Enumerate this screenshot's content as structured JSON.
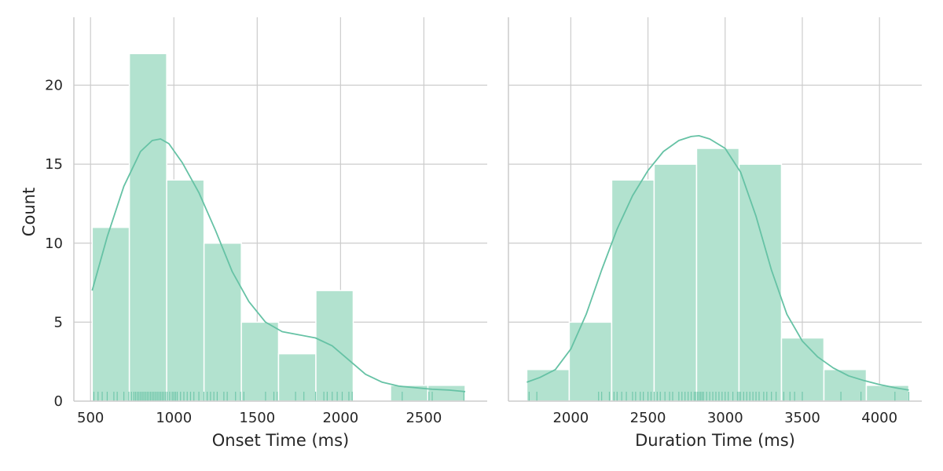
{
  "chart_data": [
    {
      "type": "bar",
      "subtype": "histogram-with-kde-and-rug",
      "xlabel": "Onset Time (ms)",
      "ylabel": "Count",
      "xlim": [
        400,
        2880
      ],
      "ylim": [
        0,
        24.3
      ],
      "x_ticks": [
        {
          "value": 500,
          "label": "500"
        },
        {
          "value": 1000,
          "label": "1000"
        },
        {
          "value": 1500,
          "label": "1500"
        },
        {
          "value": 2000,
          "label": "2000"
        },
        {
          "value": 2500,
          "label": "2500"
        }
      ],
      "y_ticks": [
        {
          "value": 0,
          "label": "0"
        },
        {
          "value": 5,
          "label": "5"
        },
        {
          "value": 10,
          "label": "10"
        },
        {
          "value": 15,
          "label": "15"
        },
        {
          "value": 20,
          "label": "20"
        }
      ],
      "bins": [
        {
          "start": 510,
          "end": 733,
          "count": 11
        },
        {
          "start": 733,
          "end": 957,
          "count": 22
        },
        {
          "start": 957,
          "end": 1181,
          "count": 14
        },
        {
          "start": 1181,
          "end": 1405,
          "count": 10
        },
        {
          "start": 1405,
          "end": 1628,
          "count": 5
        },
        {
          "start": 1628,
          "end": 1852,
          "count": 3
        },
        {
          "start": 1852,
          "end": 2076,
          "count": 7
        },
        {
          "start": 2076,
          "end": 2300,
          "count": 0
        },
        {
          "start": 2300,
          "end": 2524,
          "count": 1
        },
        {
          "start": 2524,
          "end": 2748,
          "count": 1
        }
      ],
      "kde": {
        "x": [
          510,
          600,
          700,
          800,
          870,
          920,
          970,
          1050,
          1150,
          1250,
          1350,
          1450,
          1550,
          1650,
          1750,
          1850,
          1950,
          2050,
          2150,
          2250,
          2350,
          2450,
          2550,
          2650,
          2748
        ],
        "y": [
          7.0,
          10.4,
          13.6,
          15.8,
          16.5,
          16.6,
          16.3,
          15.1,
          13.2,
          10.8,
          8.2,
          6.3,
          5.0,
          4.4,
          4.2,
          4.0,
          3.5,
          2.6,
          1.7,
          1.2,
          0.95,
          0.85,
          0.75,
          0.7,
          0.6
        ]
      },
      "rug": [
        520,
        545,
        570,
        600,
        640,
        660,
        700,
        730,
        745,
        760,
        770,
        780,
        790,
        800,
        810,
        820,
        830,
        840,
        850,
        860,
        870,
        880,
        890,
        900,
        910,
        920,
        930,
        940,
        950,
        960,
        975,
        990,
        1000,
        1010,
        1020,
        1040,
        1060,
        1080,
        1100,
        1120,
        1150,
        1180,
        1200,
        1220,
        1240,
        1260,
        1300,
        1320,
        1370,
        1400,
        1420,
        1550,
        1600,
        1620,
        1730,
        1780,
        1850,
        1900,
        1920,
        1950,
        1980,
        2010,
        2050,
        2070,
        2370,
        2530,
        2550,
        2740
      ]
    },
    {
      "type": "bar",
      "subtype": "histogram-with-kde-and-rug",
      "xlabel": "Duration Time (ms)",
      "ylabel": "",
      "xlim": [
        1596,
        4274
      ],
      "ylim": [
        0,
        24.3
      ],
      "x_ticks": [
        {
          "value": 2000,
          "label": "2000"
        },
        {
          "value": 2500,
          "label": "2500"
        },
        {
          "value": 3000,
          "label": "3000"
        },
        {
          "value": 3500,
          "label": "3500"
        },
        {
          "value": 4000,
          "label": "4000"
        }
      ],
      "y_ticks": [
        {
          "value": 0,
          "label": ""
        },
        {
          "value": 5,
          "label": ""
        },
        {
          "value": 10,
          "label": ""
        },
        {
          "value": 15,
          "label": ""
        },
        {
          "value": 20,
          "label": ""
        }
      ],
      "bins": [
        {
          "start": 1715,
          "end": 1990,
          "count": 2
        },
        {
          "start": 1990,
          "end": 2265,
          "count": 5
        },
        {
          "start": 2265,
          "end": 2540,
          "count": 14
        },
        {
          "start": 2540,
          "end": 2815,
          "count": 15
        },
        {
          "start": 2815,
          "end": 3090,
          "count": 16
        },
        {
          "start": 3090,
          "end": 3365,
          "count": 15
        },
        {
          "start": 3365,
          "end": 3640,
          "count": 4
        },
        {
          "start": 3640,
          "end": 3915,
          "count": 2
        },
        {
          "start": 3915,
          "end": 4190,
          "count": 1
        }
      ],
      "kde": {
        "x": [
          1715,
          1800,
          1900,
          2000,
          2100,
          2200,
          2300,
          2400,
          2500,
          2600,
          2700,
          2780,
          2830,
          2900,
          3000,
          3100,
          3200,
          3300,
          3400,
          3500,
          3600,
          3700,
          3800,
          3900,
          4000,
          4100,
          4190
        ],
        "y": [
          1.2,
          1.5,
          2.0,
          3.3,
          5.5,
          8.3,
          10.9,
          13.0,
          14.6,
          15.8,
          16.5,
          16.75,
          16.8,
          16.6,
          16.0,
          14.5,
          11.7,
          8.3,
          5.5,
          3.8,
          2.8,
          2.1,
          1.6,
          1.3,
          1.05,
          0.85,
          0.7
        ]
      },
      "rug": [
        1730,
        1780,
        2180,
        2200,
        2250,
        2280,
        2300,
        2330,
        2360,
        2400,
        2420,
        2450,
        2470,
        2500,
        2520,
        2540,
        2560,
        2580,
        2610,
        2640,
        2660,
        2700,
        2720,
        2740,
        2760,
        2780,
        2800,
        2810,
        2820,
        2830,
        2840,
        2850,
        2860,
        2880,
        2900,
        2920,
        2940,
        2960,
        2980,
        3000,
        3020,
        3050,
        3080,
        3090,
        3100,
        3120,
        3140,
        3160,
        3180,
        3200,
        3220,
        3250,
        3270,
        3300,
        3330,
        3380,
        3420,
        3450,
        3500,
        3750,
        3880,
        4100,
        4190
      ]
    }
  ],
  "colors": {
    "bar_fill": "#b2e2cf",
    "bar_edge": "#ffffff",
    "kde_line": "#66c2a5",
    "rug": "#66c2a5",
    "grid": "#cccccc",
    "spine": "#cccccc",
    "text": "#262626"
  }
}
